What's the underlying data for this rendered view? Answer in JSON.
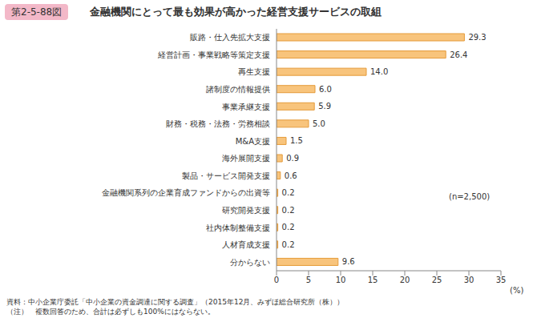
{
  "chart_data": {
    "type": "bar",
    "orientation": "horizontal",
    "figure_label": "第2-5-88図",
    "title": "金融機関にとって最も効果が高かった経営支援サービスの取組",
    "categories": [
      "販路・仕入先拡大支援",
      "経営計画・事業戦略等策定支援",
      "再生支援",
      "諸制度の情報提供",
      "事業承継支援",
      "財務・税務・法務・労務相談",
      "M&A支援",
      "海外展開支援",
      "製品・サービス開発支援",
      "金融機関系列の企業育成ファンドからの出資等",
      "研究開発支援",
      "社内体制整備支援",
      "人材育成支援",
      "分からない"
    ],
    "values": [
      29.3,
      26.4,
      14.0,
      6.0,
      5.9,
      5.0,
      1.5,
      0.9,
      0.6,
      0.2,
      0.2,
      0.2,
      0.2,
      9.6
    ],
    "value_labels": [
      "29.3",
      "26.4",
      "14.0",
      "6.0",
      "5.9",
      "5.0",
      "1.5",
      "0.9",
      "0.6",
      "0.2",
      "0.2",
      "0.2",
      "0.2",
      "9.6"
    ],
    "data_labels": true,
    "color": "#f8c47c",
    "xlim": [
      0,
      35
    ],
    "xticks": [
      0,
      5,
      10,
      15,
      20,
      25,
      30,
      35
    ],
    "x_label": "(%)",
    "grid": false,
    "annotations": [
      "(n=2,500)"
    ],
    "source": "資料：中小企業庁委託「中小企業の資金調達に関する調査」（2015年12月、みずほ総合研究所（株））",
    "note": "（注）　複数回答のため、合計は必ずしも100%にはならない。"
  }
}
